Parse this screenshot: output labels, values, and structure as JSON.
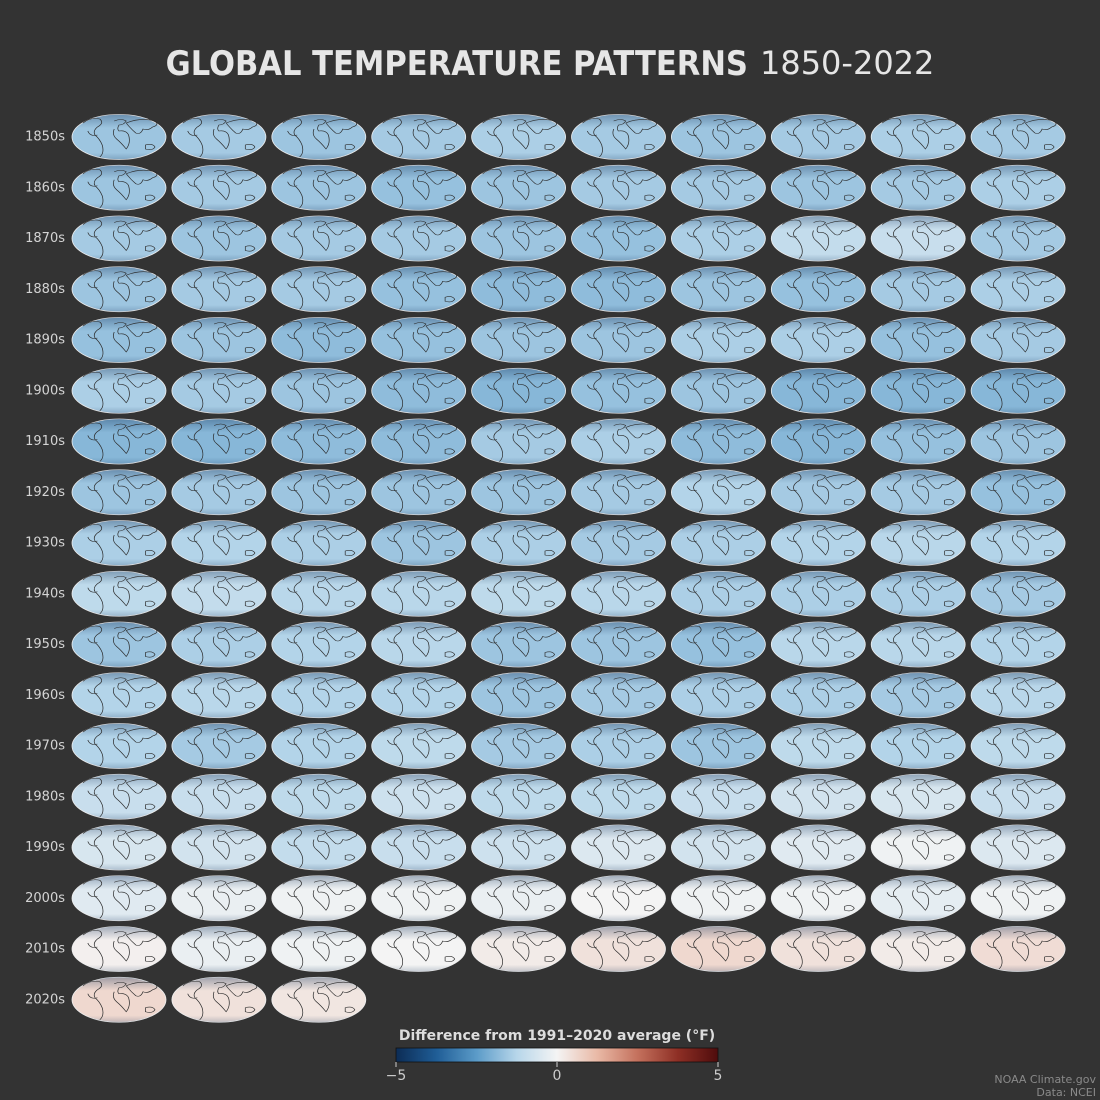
{
  "chart_data": {
    "type": "map",
    "title": "GLOBAL TEMPERATURE PATTERNS",
    "subtitle": "1850-2022",
    "rows": [
      {
        "label": "1850s",
        "values": [
          -1.6,
          -1.5,
          -1.6,
          -1.5,
          -1.4,
          -1.5,
          -1.6,
          -1.5,
          -1.4,
          -1.5
        ]
      },
      {
        "label": "1860s",
        "values": [
          -1.6,
          -1.5,
          -1.6,
          -1.7,
          -1.6,
          -1.5,
          -1.5,
          -1.6,
          -1.5,
          -1.4
        ]
      },
      {
        "label": "1870s",
        "values": [
          -1.5,
          -1.6,
          -1.5,
          -1.5,
          -1.6,
          -1.7,
          -1.4,
          -1.0,
          -0.9,
          -1.5
        ]
      },
      {
        "label": "1880s",
        "values": [
          -1.6,
          -1.5,
          -1.5,
          -1.7,
          -1.8,
          -1.8,
          -1.6,
          -1.7,
          -1.5,
          -1.4
        ]
      },
      {
        "label": "1890s",
        "values": [
          -1.7,
          -1.6,
          -1.8,
          -1.7,
          -1.6,
          -1.6,
          -1.4,
          -1.4,
          -1.7,
          -1.5
        ]
      },
      {
        "label": "1900s",
        "values": [
          -1.4,
          -1.5,
          -1.6,
          -1.8,
          -1.9,
          -1.7,
          -1.6,
          -1.9,
          -1.9,
          -1.9
        ]
      },
      {
        "label": "1910s",
        "values": [
          -1.9,
          -1.9,
          -1.8,
          -1.8,
          -1.5,
          -1.4,
          -1.8,
          -1.9,
          -1.7,
          -1.6
        ]
      },
      {
        "label": "1920s",
        "values": [
          -1.6,
          -1.5,
          -1.6,
          -1.6,
          -1.6,
          -1.5,
          -1.3,
          -1.5,
          -1.5,
          -1.7
        ]
      },
      {
        "label": "1930s",
        "values": [
          -1.4,
          -1.3,
          -1.4,
          -1.6,
          -1.4,
          -1.5,
          -1.4,
          -1.3,
          -1.2,
          -1.3
        ]
      },
      {
        "label": "1940s",
        "values": [
          -1.1,
          -1.0,
          -1.2,
          -1.2,
          -1.1,
          -1.2,
          -1.4,
          -1.4,
          -1.4,
          -1.5
        ]
      },
      {
        "label": "1950s",
        "values": [
          -1.6,
          -1.4,
          -1.3,
          -1.2,
          -1.6,
          -1.6,
          -1.7,
          -1.2,
          -1.2,
          -1.3
        ]
      },
      {
        "label": "1960s",
        "values": [
          -1.3,
          -1.2,
          -1.3,
          -1.3,
          -1.6,
          -1.5,
          -1.4,
          -1.4,
          -1.5,
          -1.2
        ]
      },
      {
        "label": "1970s",
        "values": [
          -1.3,
          -1.5,
          -1.3,
          -1.1,
          -1.5,
          -1.4,
          -1.6,
          -1.1,
          -1.3,
          -1.1
        ]
      },
      {
        "label": "1980s",
        "values": [
          -0.9,
          -0.9,
          -1.1,
          -0.8,
          -1.1,
          -1.1,
          -0.9,
          -0.7,
          -0.6,
          -0.9
        ]
      },
      {
        "label": "1990s",
        "values": [
          -0.6,
          -0.7,
          -1.0,
          -0.9,
          -0.8,
          -0.5,
          -0.7,
          -0.4,
          -0.1,
          -0.5
        ]
      },
      {
        "label": "2000s",
        "values": [
          -0.4,
          -0.2,
          -0.1,
          -0.1,
          -0.2,
          0.0,
          -0.1,
          -0.1,
          -0.3,
          -0.1
        ]
      },
      {
        "label": "2010s",
        "values": [
          0.1,
          -0.2,
          -0.1,
          0.0,
          0.2,
          0.4,
          0.6,
          0.4,
          0.2,
          0.5
        ]
      },
      {
        "label": "2020s",
        "values": [
          0.6,
          0.4,
          0.3
        ]
      }
    ],
    "colorbar": {
      "label": "Difference from 1991–2020 average (°F)",
      "lim": [
        -5,
        5
      ],
      "ticks": [
        {
          "value": -5,
          "label": "−5"
        },
        0,
        5
      ],
      "colors": [
        "#0c2c55",
        "#1f5d96",
        "#5b9bc8",
        "#b7d6ea",
        "#f4f4f4",
        "#e9b9a6",
        "#c4715d",
        "#8e2f25",
        "#4f0c0c"
      ]
    },
    "credits": [
      "NOAA Climate.gov",
      "Data: NCEI"
    ]
  }
}
